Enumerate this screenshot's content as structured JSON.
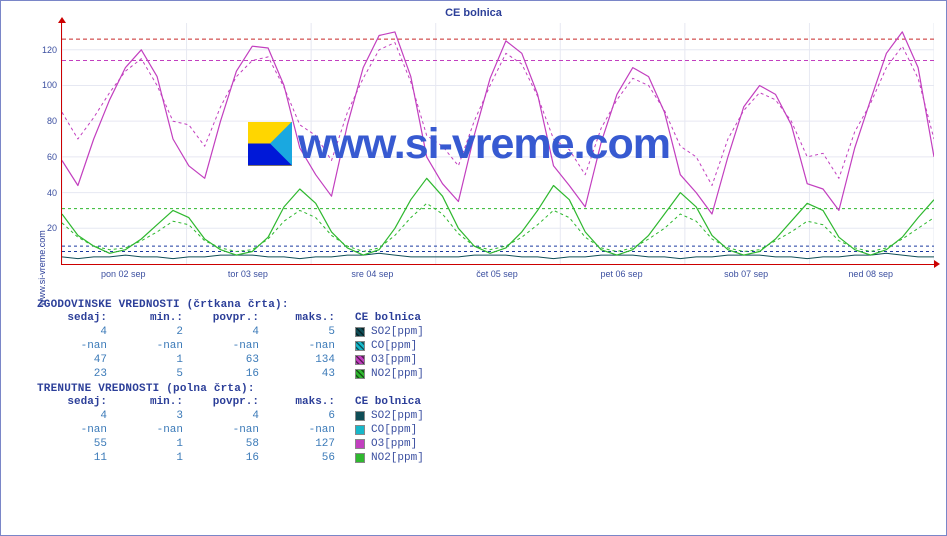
{
  "site": "www.si-vreme.com",
  "chart": {
    "title": "CE bolnica",
    "background_color": "#ffffff",
    "grid_color": "#e6e8f2",
    "axis_color": "#cc0000",
    "label_color": "#3b4fa0",
    "font_size_labels": 9,
    "font_size_title": 11,
    "y": {
      "min": 0,
      "max": 135,
      "ticks": [
        20,
        40,
        60,
        80,
        100,
        120
      ]
    },
    "x_labels": [
      "pon 02 sep",
      "tor 03 sep",
      "sre 04 sep",
      "čet 05 sep",
      "pet 06 sep",
      "sob 07 sep",
      "ned 08 sep"
    ],
    "watermark_text": "www.si-vreme.com",
    "watermark_color": "#375ad1",
    "days": 7,
    "series_colors": {
      "SO2": "#0f4d56",
      "CO": "#17b7c9",
      "O3": "#c23fbf",
      "NO2": "#2fb82f"
    },
    "ref_lines": {
      "dashed_green": 31,
      "dashed_blue_a": 7,
      "dashed_blue_b": 10,
      "dashed_red": 126,
      "dashed_pink": 114
    },
    "samples_per_day_main": 8,
    "o3_solid": [
      58,
      44,
      70,
      92,
      110,
      120,
      105,
      70,
      55,
      48,
      80,
      108,
      122,
      121,
      100,
      65,
      50,
      38,
      78,
      110,
      128,
      130,
      105,
      60,
      45,
      35,
      72,
      104,
      125,
      118,
      95,
      55,
      44,
      32,
      68,
      95,
      110,
      105,
      85,
      50,
      40,
      28,
      60,
      88,
      100,
      95,
      78,
      45,
      42,
      30,
      65,
      92,
      118,
      130,
      110,
      60
    ],
    "o3_dashed": [
      85,
      70,
      82,
      96,
      108,
      115,
      100,
      80,
      78,
      66,
      88,
      105,
      114,
      116,
      99,
      78,
      72,
      58,
      85,
      104,
      120,
      124,
      102,
      72,
      66,
      55,
      80,
      100,
      118,
      112,
      94,
      70,
      64,
      50,
      76,
      92,
      104,
      100,
      86,
      66,
      60,
      44,
      70,
      86,
      96,
      92,
      80,
      60,
      62,
      48,
      74,
      90,
      110,
      122,
      104,
      70
    ],
    "no2_solid": [
      28,
      16,
      10,
      6,
      8,
      14,
      22,
      30,
      26,
      14,
      8,
      5,
      7,
      15,
      32,
      42,
      34,
      18,
      9,
      5,
      8,
      20,
      36,
      48,
      38,
      20,
      10,
      6,
      9,
      18,
      30,
      44,
      36,
      18,
      8,
      5,
      8,
      16,
      28,
      40,
      32,
      16,
      8,
      5,
      7,
      14,
      24,
      34,
      30,
      15,
      8,
      5,
      8,
      15,
      26,
      36
    ],
    "no2_dashed": [
      23,
      15,
      10,
      8,
      9,
      13,
      18,
      24,
      22,
      13,
      9,
      7,
      8,
      14,
      24,
      30,
      26,
      16,
      10,
      7,
      9,
      16,
      26,
      34,
      28,
      17,
      10,
      8,
      10,
      15,
      22,
      30,
      26,
      15,
      9,
      7,
      9,
      14,
      20,
      28,
      24,
      14,
      9,
      7,
      8,
      13,
      18,
      24,
      22,
      13,
      9,
      7,
      9,
      14,
      20,
      26
    ],
    "so2": [
      4,
      3,
      4,
      4,
      5,
      4,
      4,
      3,
      4,
      4,
      5,
      5,
      5,
      4,
      4,
      3,
      4,
      4,
      5,
      5,
      6,
      5,
      4,
      4,
      4,
      4,
      5,
      5,
      5,
      4,
      4,
      3,
      4,
      4,
      5,
      5,
      5,
      4,
      4,
      3,
      4,
      4,
      5,
      5,
      5,
      4,
      4,
      3,
      4,
      4,
      5,
      5,
      6,
      5,
      4,
      4
    ]
  },
  "tables": {
    "hist": {
      "heading": "ZGODOVINSKE VREDNOSTI (črtkana črta):",
      "cols": [
        "sedaj:",
        "min.:",
        "povpr.:",
        "maks.:"
      ],
      "site_col": "CE bolnica",
      "rows": [
        {
          "vals": [
            "4",
            "2",
            "4",
            "5"
          ],
          "label": "SO2[ppm]",
          "color": "#0f4d56",
          "hatch": true
        },
        {
          "vals": [
            "-nan",
            "-nan",
            "-nan",
            "-nan"
          ],
          "label": "CO[ppm]",
          "color": "#17b7c9",
          "hatch": true
        },
        {
          "vals": [
            "47",
            "1",
            "63",
            "134"
          ],
          "label": "O3[ppm]",
          "color": "#c23fbf",
          "hatch": true
        },
        {
          "vals": [
            "23",
            "5",
            "16",
            "43"
          ],
          "label": "NO2[ppm]",
          "color": "#2fb82f",
          "hatch": true
        }
      ]
    },
    "curr": {
      "heading": "TRENUTNE VREDNOSTI (polna črta):",
      "cols": [
        "sedaj:",
        "min.:",
        "povpr.:",
        "maks.:"
      ],
      "site_col": "CE bolnica",
      "rows": [
        {
          "vals": [
            "4",
            "3",
            "4",
            "6"
          ],
          "label": "SO2[ppm]",
          "color": "#0f4d56",
          "hatch": false
        },
        {
          "vals": [
            "-nan",
            "-nan",
            "-nan",
            "-nan"
          ],
          "label": "CO[ppm]",
          "color": "#17b7c9",
          "hatch": false
        },
        {
          "vals": [
            "55",
            "1",
            "58",
            "127"
          ],
          "label": "O3[ppm]",
          "color": "#c23fbf",
          "hatch": false
        },
        {
          "vals": [
            "11",
            "1",
            "16",
            "56"
          ],
          "label": "NO2[ppm]",
          "color": "#2fb82f",
          "hatch": false
        }
      ]
    }
  }
}
